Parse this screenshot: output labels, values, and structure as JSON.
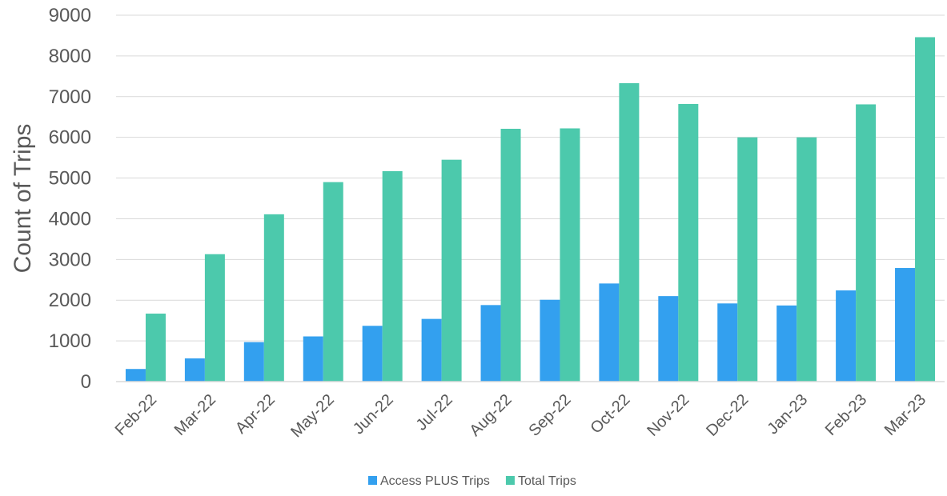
{
  "chart_data": {
    "type": "bar",
    "title": "",
    "xlabel": "",
    "ylabel": "Count of Trips",
    "ylim": [
      0,
      9000
    ],
    "yticks": [
      0,
      1000,
      2000,
      3000,
      4000,
      5000,
      6000,
      7000,
      8000,
      9000
    ],
    "grid": true,
    "legend_position": "bottom",
    "categories": [
      "Feb-22",
      "Mar-22",
      "Apr-22",
      "May-22",
      "Jun-22",
      "Jul-22",
      "Aug-22",
      "Sep-22",
      "Oct-22",
      "Nov-22",
      "Dec-22",
      "Jan-23",
      "Feb-23",
      "Mar-23"
    ],
    "series": [
      {
        "name": "Access PLUS Trips",
        "color": "#33a0ef",
        "values": [
          310,
          570,
          970,
          1110,
          1370,
          1540,
          1880,
          2010,
          2410,
          2100,
          1920,
          1870,
          2240,
          2790
        ]
      },
      {
        "name": "Total Trips",
        "color": "#4cc9ac",
        "values": [
          1670,
          3130,
          4110,
          4900,
          5170,
          5450,
          6210,
          6220,
          7330,
          6820,
          6000,
          6000,
          6810,
          8460
        ]
      }
    ]
  }
}
